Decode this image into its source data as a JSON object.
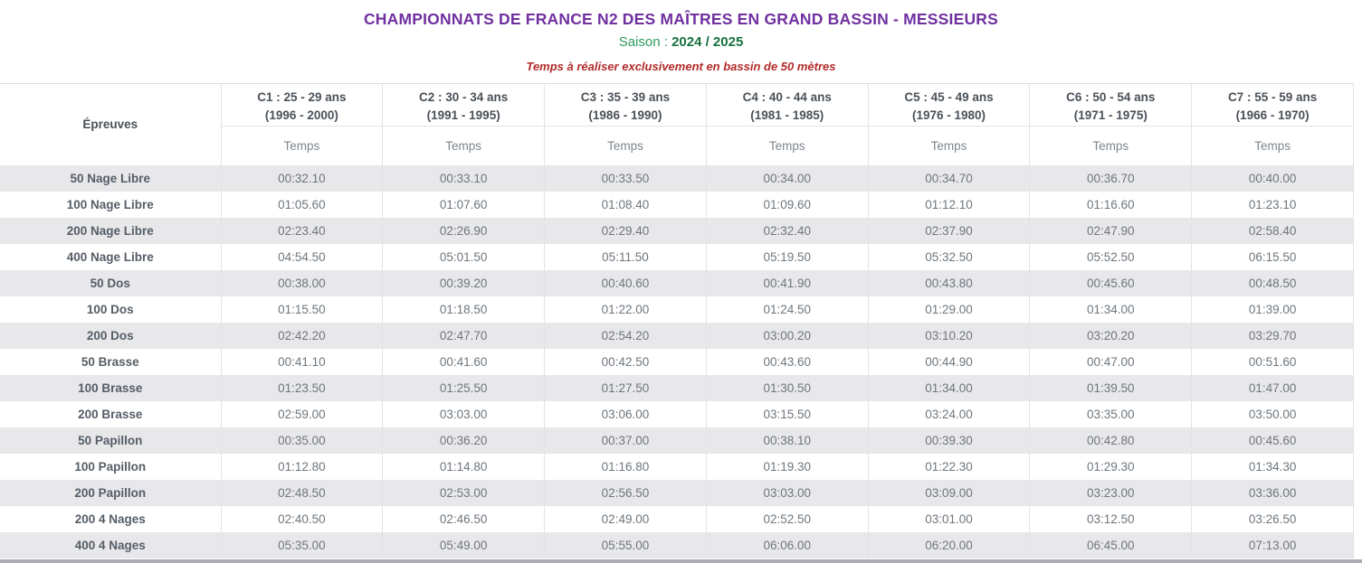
{
  "page": {
    "title": "CHAMPIONNATS DE FRANCE N2 DES MAÎTRES EN GRAND BASSIN - MESSIEURS",
    "season": {
      "label": "Saison :",
      "value": "2024 / 2025"
    },
    "notice": "Temps à réaliser exclusivement en bassin de 50 mètres"
  },
  "table": {
    "events_header": "Épreuves",
    "temps_header": "Temps",
    "categories": [
      {
        "code": "C1 : 25 - 29 ans",
        "years": "(1996 - 2000)"
      },
      {
        "code": "C2 : 30 - 34 ans",
        "years": "(1991 - 1995)"
      },
      {
        "code": "C3 : 35 - 39 ans",
        "years": "(1986 - 1990)"
      },
      {
        "code": "C4 : 40 - 44 ans",
        "years": "(1981 - 1985)"
      },
      {
        "code": "C5 : 45 - 49 ans",
        "years": "(1976 - 1980)"
      },
      {
        "code": "C6 : 50 - 54 ans",
        "years": "(1971 - 1975)"
      },
      {
        "code": "C7 : 55 - 59 ans",
        "years": "(1966 - 1970)"
      }
    ],
    "rows": [
      {
        "event": "50 Nage Libre",
        "times": [
          "00:32.10",
          "00:33.10",
          "00:33.50",
          "00:34.00",
          "00:34.70",
          "00:36.70",
          "00:40.00"
        ]
      },
      {
        "event": "100 Nage Libre",
        "times": [
          "01:05.60",
          "01:07.60",
          "01:08.40",
          "01:09.60",
          "01:12.10",
          "01:16.60",
          "01:23.10"
        ]
      },
      {
        "event": "200 Nage Libre",
        "times": [
          "02:23.40",
          "02:26.90",
          "02:29.40",
          "02:32.40",
          "02:37.90",
          "02:47.90",
          "02:58.40"
        ]
      },
      {
        "event": "400 Nage Libre",
        "times": [
          "04:54.50",
          "05:01.50",
          "05:11.50",
          "05:19.50",
          "05:32.50",
          "05:52.50",
          "06:15.50"
        ]
      },
      {
        "event": "50 Dos",
        "times": [
          "00:38.00",
          "00:39.20",
          "00:40.60",
          "00:41.90",
          "00:43.80",
          "00:45.60",
          "00:48.50"
        ]
      },
      {
        "event": "100 Dos",
        "times": [
          "01:15.50",
          "01:18.50",
          "01:22.00",
          "01:24.50",
          "01:29.00",
          "01:34.00",
          "01:39.00"
        ]
      },
      {
        "event": "200 Dos",
        "times": [
          "02:42.20",
          "02:47.70",
          "02:54.20",
          "03:00.20",
          "03:10.20",
          "03:20.20",
          "03:29.70"
        ]
      },
      {
        "event": "50 Brasse",
        "times": [
          "00:41.10",
          "00:41.60",
          "00:42.50",
          "00:43.60",
          "00:44.90",
          "00:47.00",
          "00:51.60"
        ]
      },
      {
        "event": "100 Brasse",
        "times": [
          "01:23.50",
          "01:25.50",
          "01:27.50",
          "01:30.50",
          "01:34.00",
          "01:39.50",
          "01:47.00"
        ]
      },
      {
        "event": "200 Brasse",
        "times": [
          "02:59.00",
          "03:03.00",
          "03:06.00",
          "03:15.50",
          "03:24.00",
          "03:35.00",
          "03:50.00"
        ]
      },
      {
        "event": "50 Papillon",
        "times": [
          "00:35.00",
          "00:36.20",
          "00:37.00",
          "00:38.10",
          "00:39.30",
          "00:42.80",
          "00:45.60"
        ]
      },
      {
        "event": "100 Papillon",
        "times": [
          "01:12.80",
          "01:14.80",
          "01:16.80",
          "01:19.30",
          "01:22.30",
          "01:29.30",
          "01:34.30"
        ]
      },
      {
        "event": "200 Papillon",
        "times": [
          "02:48.50",
          "02:53.00",
          "02:56.50",
          "03:03.00",
          "03:09.00",
          "03:23.00",
          "03:36.00"
        ]
      },
      {
        "event": "200 4 Nages",
        "times": [
          "02:40.50",
          "02:46.50",
          "02:49.00",
          "02:52.50",
          "03:01.00",
          "03:12.50",
          "03:26.50"
        ]
      },
      {
        "event": "400 4 Nages",
        "times": [
          "05:35.00",
          "05:49.00",
          "05:55.00",
          "06:06.00",
          "06:20.00",
          "06:45.00",
          "07:13.00"
        ]
      }
    ]
  },
  "colors": {
    "title": "#7030A0",
    "season_label": "#2B9A5C",
    "season_value": "#17713F",
    "notice": "#B22A2A",
    "header_text": "#4A5158",
    "temps_text": "#7D858C",
    "event_text": "#555D66",
    "time_text": "#6E767D",
    "stripe": "#E8E8EB",
    "grid": "#E3E3E6",
    "scrollbar": "#A9ADB2"
  }
}
